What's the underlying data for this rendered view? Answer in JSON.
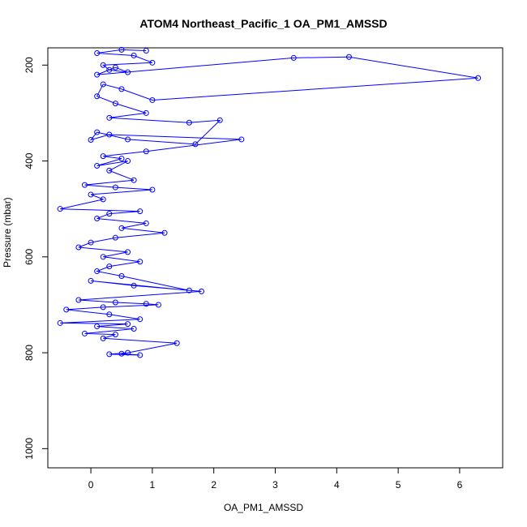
{
  "chart_data": {
    "type": "line",
    "title": "ATOM4 Northeast_Pacific_1 OA_PM1_AMSSD",
    "xlabel": "OA_PM1_AMSSD",
    "ylabel": "Pressure (mbar)",
    "xlim": [
      -0.7,
      6.7
    ],
    "ylim": [
      1040,
      164
    ],
    "y_reversed": true,
    "x_ticks": [
      0,
      1,
      2,
      3,
      4,
      5,
      6
    ],
    "y_ticks": [
      200,
      400,
      600,
      800,
      1000
    ],
    "grid": false,
    "series_color": "#0000ff",
    "marker": "open-circle",
    "series": [
      {
        "x": [
          0.9,
          0.5,
          0.1,
          0.7,
          1.0,
          0.2,
          0.3,
          0.6,
          0.4,
          0.1,
          3.3,
          4.2,
          6.3,
          1.0,
          0.5,
          0.2,
          0.1,
          0.4,
          0.9,
          0.3,
          1.6,
          2.1,
          1.7,
          0.6,
          0.1,
          0.0,
          0.3,
          2.45,
          0.9,
          0.2,
          0.5,
          0.1,
          0.6,
          0.3,
          0.7,
          -0.1,
          0.4,
          1.0,
          0.0,
          0.2,
          -0.5,
          0.8,
          0.3,
          0.1,
          0.9,
          0.5,
          1.2,
          0.4,
          0.0,
          -0.2,
          0.6,
          0.2,
          0.8,
          0.3,
          0.1,
          0.5,
          1.6,
          0.0,
          0.7,
          1.8,
          -0.2,
          0.4,
          0.9,
          1.1,
          0.2,
          -0.4,
          0.3,
          0.8,
          -0.5,
          0.6,
          0.1,
          0.7,
          -0.1,
          0.4,
          0.2,
          1.4,
          0.6,
          0.3,
          0.8,
          0.5
        ],
        "y": [
          170,
          168,
          175,
          180,
          195,
          200,
          210,
          215,
          205,
          220,
          185,
          183,
          227,
          273,
          250,
          240,
          265,
          280,
          300,
          310,
          320,
          315,
          365,
          355,
          340,
          356,
          345,
          355,
          380,
          390,
          395,
          410,
          400,
          420,
          440,
          450,
          455,
          460,
          470,
          480,
          500,
          505,
          510,
          520,
          530,
          540,
          550,
          560,
          570,
          580,
          590,
          600,
          610,
          620,
          630,
          640,
          670,
          650,
          660,
          672,
          690,
          695,
          698,
          700,
          705,
          710,
          720,
          730,
          738,
          740,
          745,
          750,
          760,
          762,
          770,
          780,
          800,
          803,
          805,
          802
        ]
      }
    ]
  }
}
